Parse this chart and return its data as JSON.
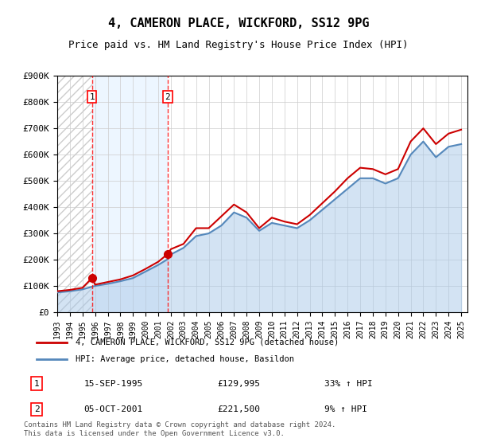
{
  "title": "4, CAMERON PLACE, WICKFORD, SS12 9PG",
  "subtitle": "Price paid vs. HM Land Registry's House Price Index (HPI)",
  "ylabel": "",
  "ylim": [
    0,
    900000
  ],
  "yticks": [
    0,
    100000,
    200000,
    300000,
    400000,
    500000,
    600000,
    700000,
    800000,
    900000
  ],
  "ytick_labels": [
    "£0",
    "£100K",
    "£200K",
    "£300K",
    "£400K",
    "£500K",
    "£600K",
    "£700K",
    "£800K",
    "£900K"
  ],
  "hpi_color": "#a8c8e8",
  "price_color": "#cc0000",
  "dot_color": "#cc0000",
  "hatch_color": "#cccccc",
  "grid_color": "#cccccc",
  "background_color": "#ffffff",
  "sale1_date": "15-SEP-1995",
  "sale1_price": 129995,
  "sale1_label": "1",
  "sale1_hpi_pct": "33%",
  "sale2_date": "05-OCT-2001",
  "sale2_price": 221500,
  "sale2_label": "2",
  "sale2_hpi_pct": "9%",
  "legend_line1": "4, CAMERON PLACE, WICKFORD, SS12 9PG (detached house)",
  "legend_line2": "HPI: Average price, detached house, Basildon",
  "footer": "Contains HM Land Registry data © Crown copyright and database right 2024.\nThis data is licensed under the Open Government Licence v3.0.",
  "x_start": 1993.0,
  "x_end": 2025.5,
  "xtick_years": [
    1993,
    1994,
    1995,
    1996,
    1997,
    1998,
    1999,
    2000,
    2001,
    2002,
    2003,
    2004,
    2005,
    2006,
    2007,
    2008,
    2009,
    2010,
    2011,
    2012,
    2013,
    2014,
    2015,
    2016,
    2017,
    2018,
    2019,
    2020,
    2021,
    2022,
    2023,
    2024,
    2025
  ],
  "hpi_years": [
    1993,
    1994,
    1995,
    1995.75,
    1996,
    1997,
    1998,
    1999,
    2000,
    2001,
    2001.75,
    2002,
    2003,
    2004,
    2005,
    2006,
    2007,
    2008,
    2009,
    2010,
    2011,
    2012,
    2013,
    2014,
    2015,
    2016,
    2017,
    2018,
    2019,
    2020,
    2021,
    2022,
    2023,
    2024,
    2025
  ],
  "hpi_values": [
    75000,
    80000,
    87000,
    97000,
    100000,
    108000,
    118000,
    130000,
    155000,
    180000,
    202000,
    220000,
    245000,
    290000,
    300000,
    330000,
    380000,
    360000,
    310000,
    340000,
    330000,
    320000,
    350000,
    390000,
    430000,
    470000,
    510000,
    510000,
    490000,
    510000,
    600000,
    650000,
    590000,
    630000,
    640000
  ],
  "price_years": [
    1993,
    1994,
    1995,
    1995.75,
    1996,
    1997,
    1998,
    1999,
    2000,
    2001,
    2001.75,
    2002,
    2003,
    2004,
    2005,
    2006,
    2007,
    2008,
    2009,
    2010,
    2011,
    2012,
    2013,
    2014,
    2015,
    2016,
    2017,
    2018,
    2019,
    2020,
    2021,
    2022,
    2023,
    2024,
    2025
  ],
  "price_values": [
    80000,
    85000,
    93000,
    130000,
    105000,
    115000,
    125000,
    140000,
    165000,
    192000,
    221500,
    240000,
    260000,
    320000,
    320000,
    365000,
    410000,
    380000,
    320000,
    360000,
    345000,
    335000,
    370000,
    415000,
    460000,
    510000,
    550000,
    545000,
    525000,
    545000,
    650000,
    700000,
    640000,
    680000,
    695000
  ],
  "sale1_x": 1995.75,
  "sale2_x": 2001.75
}
